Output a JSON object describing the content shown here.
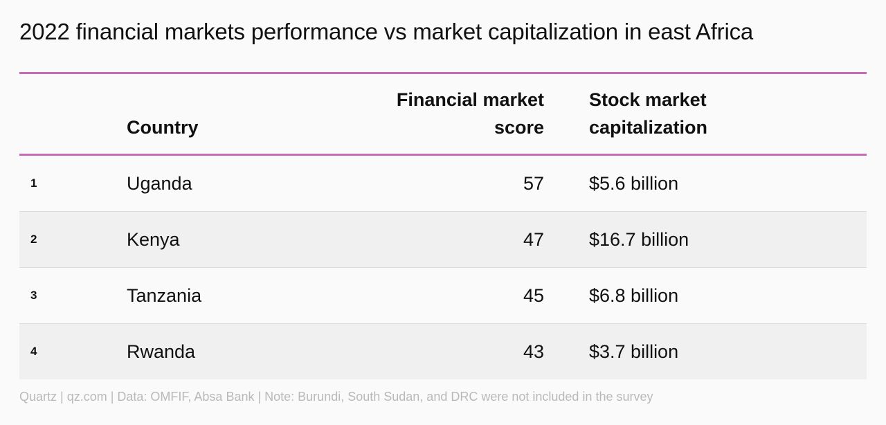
{
  "title": "2022 financial markets performance vs market capitalization in east Africa",
  "headers": {
    "country": "Country",
    "score_line1": "Financial market",
    "score_line2": "score",
    "cap_line1": "Stock market",
    "cap_line2": "capitalization"
  },
  "rows": [
    {
      "rank": "1",
      "country": "Uganda",
      "score": "57",
      "cap": "$5.6 billion"
    },
    {
      "rank": "2",
      "country": "Kenya",
      "score": "47",
      "cap": "$16.7 billion"
    },
    {
      "rank": "3",
      "country": "Tanzania",
      "score": "45",
      "cap": "$6.8 billion"
    },
    {
      "rank": "4",
      "country": "Rwanda",
      "score": "43",
      "cap": "$3.7 billion"
    }
  ],
  "footer": "Quartz | qz.com | Data: OMFIF, Absa Bank | Note: Burundi, South Sudan, and DRC were not included in the survey",
  "colors": {
    "accent_rule": "#c86bb6",
    "alt_row": "#f0f0f0",
    "footer_text": "#b9b9b9"
  },
  "chart_data": {
    "type": "table",
    "title": "2022 financial markets performance vs market capitalization in east Africa",
    "columns": [
      "",
      "Country",
      "Financial market score",
      "Stock market capitalization"
    ],
    "rows": [
      [
        "1",
        "Uganda",
        57,
        "$5.6 billion"
      ],
      [
        "2",
        "Kenya",
        47,
        "$16.7 billion"
      ],
      [
        "3",
        "Tanzania",
        45,
        "$6.8 billion"
      ],
      [
        "4",
        "Rwanda",
        43,
        "$3.7 billion"
      ]
    ]
  }
}
